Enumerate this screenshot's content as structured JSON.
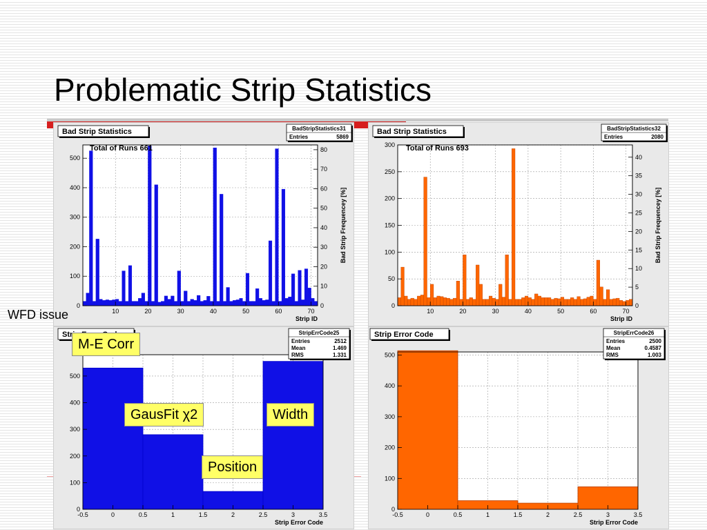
{
  "slide": {
    "title": "Problematic Strip Statistics",
    "wfd_label": "WFD issue"
  },
  "callouts": {
    "me_corr": "M-E Corr",
    "gausfit": "GausFit χ2",
    "width": "Width",
    "position": "Position"
  },
  "colors": {
    "blue": "#1010e6",
    "orange": "#ff6600",
    "accent_red": "#d61e1e",
    "callout_yellow": "#ffff66"
  },
  "chart_data": [
    {
      "id": "blue-strip",
      "type": "bar",
      "frame_title": "Bad Strip Statistics",
      "stats_name": "BadStripStatistics31",
      "stats": [
        {
          "label": "Entries",
          "value": "5869"
        }
      ],
      "annotation": "Total  of Runs 661",
      "xlabel": "Strip ID",
      "ylabel": "",
      "ylabel_right": "Bad Strip Frequencey [%]",
      "xlim": [
        0,
        72
      ],
      "ylim": [
        0,
        545
      ],
      "yticks": [
        0,
        100,
        200,
        300,
        400,
        500
      ],
      "xticks": [
        10,
        20,
        30,
        40,
        50,
        60,
        70
      ],
      "right_lim": [
        0,
        82.45
      ],
      "right_ticks": [
        0,
        10,
        20,
        30,
        40,
        50,
        60,
        70,
        80
      ],
      "x_start": 0,
      "values": [
        15,
        43,
        525,
        15,
        226,
        22,
        18,
        20,
        18,
        20,
        22,
        15,
        118,
        15,
        136,
        15,
        15,
        25,
        43,
        15,
        542,
        15,
        410,
        12,
        15,
        33,
        22,
        33,
        15,
        118,
        15,
        50,
        15,
        22,
        18,
        35,
        15,
        18,
        32,
        15,
        535,
        15,
        378,
        15,
        62,
        15,
        18,
        20,
        25,
        15,
        110,
        15,
        15,
        58,
        25,
        18,
        20,
        220,
        15,
        532,
        15,
        395,
        25,
        30,
        108,
        15,
        120,
        20,
        125,
        60,
        25,
        15
      ],
      "color": "#1010e6",
      "fill": "#1010e6"
    },
    {
      "id": "orange-strip",
      "type": "bar",
      "frame_title": "Bad Strip Statistics",
      "stats_name": "BadStripStatistics32",
      "stats": [
        {
          "label": "Entries",
          "value": "2080"
        }
      ],
      "annotation": "Total  of Runs 693",
      "xlabel": "Strip ID",
      "ylabel": "",
      "ylabel_right": "Bad Strip Frequencey [%]",
      "xlim": [
        0,
        72
      ],
      "ylim": [
        0,
        300
      ],
      "yticks": [
        0,
        50,
        100,
        150,
        200,
        250,
        300
      ],
      "xticks": [
        10,
        20,
        30,
        40,
        50,
        60,
        70
      ],
      "right_lim": [
        0,
        43.3
      ],
      "right_ticks": [
        0,
        5,
        10,
        15,
        20,
        25,
        30,
        35,
        40
      ],
      "x_start": 0,
      "values": [
        15,
        72,
        18,
        12,
        14,
        12,
        18,
        20,
        240,
        15,
        40,
        15,
        18,
        17,
        15,
        14,
        12,
        14,
        46,
        12,
        95,
        12,
        15,
        12,
        76,
        40,
        12,
        12,
        18,
        14,
        12,
        40,
        16,
        95,
        12,
        293,
        12,
        12,
        15,
        18,
        15,
        12,
        22,
        18,
        15,
        15,
        15,
        12,
        14,
        13,
        16,
        12,
        12,
        15,
        12,
        17,
        12,
        13,
        16,
        18,
        12,
        85,
        35,
        12,
        30,
        12,
        13,
        14,
        10,
        8,
        10,
        12
      ],
      "color": "#b84000",
      "fill": "#ff6600"
    },
    {
      "id": "blue-err",
      "type": "bar",
      "frame_title": "Strip Error Code",
      "stats_name": "StripErrCode25",
      "stats": [
        {
          "label": "Entries",
          "value": "2512"
        },
        {
          "label": "Mean",
          "value": "1.469"
        },
        {
          "label": "RMS",
          "value": "1.331"
        }
      ],
      "xlabel": "Strip Error Code",
      "ylabel": "",
      "xlim": [
        -0.5,
        3.5
      ],
      "ylim": [
        0,
        580
      ],
      "yticks": [
        0,
        100,
        200,
        300,
        400,
        500
      ],
      "xticks": [
        -0.5,
        0,
        0.5,
        1,
        1.5,
        2,
        2.5,
        3,
        3.5
      ],
      "xticklabels": [
        "-0.5",
        "0",
        "0.5",
        "1",
        "1.5",
        "2",
        "2.5",
        "3",
        "3.5"
      ],
      "categories": [
        "0",
        "1",
        "2",
        "3"
      ],
      "values": [
        530,
        280,
        67,
        555
      ],
      "color": "#0000cc",
      "fill": "#1010e6"
    },
    {
      "id": "orange-err",
      "type": "bar",
      "frame_title": "Strip Error Code",
      "stats_name": "StripErrCode26",
      "stats": [
        {
          "label": "Entries",
          "value": "2500"
        },
        {
          "label": "Mean",
          "value": "0.4587"
        },
        {
          "label": "RMS",
          "value": "1.003"
        }
      ],
      "xlabel": "Strip Error Code",
      "ylabel": "",
      "xlim": [
        -0.5,
        3.5
      ],
      "ylim": [
        0,
        510
      ],
      "yticks": [
        0,
        100,
        200,
        300,
        400,
        500
      ],
      "xticks": [
        -0.5,
        0,
        0.5,
        1,
        1.5,
        2,
        2.5,
        3,
        3.5
      ],
      "xticklabels": [
        "-0.5",
        "0",
        "0.5",
        "1",
        "1.5",
        "2",
        "2.5",
        "3",
        "3.5"
      ],
      "categories": [
        "0",
        "1",
        "2",
        "3"
      ],
      "values": [
        514,
        28,
        20,
        73
      ],
      "color": "#b84000",
      "fill": "#ff6600"
    }
  ]
}
